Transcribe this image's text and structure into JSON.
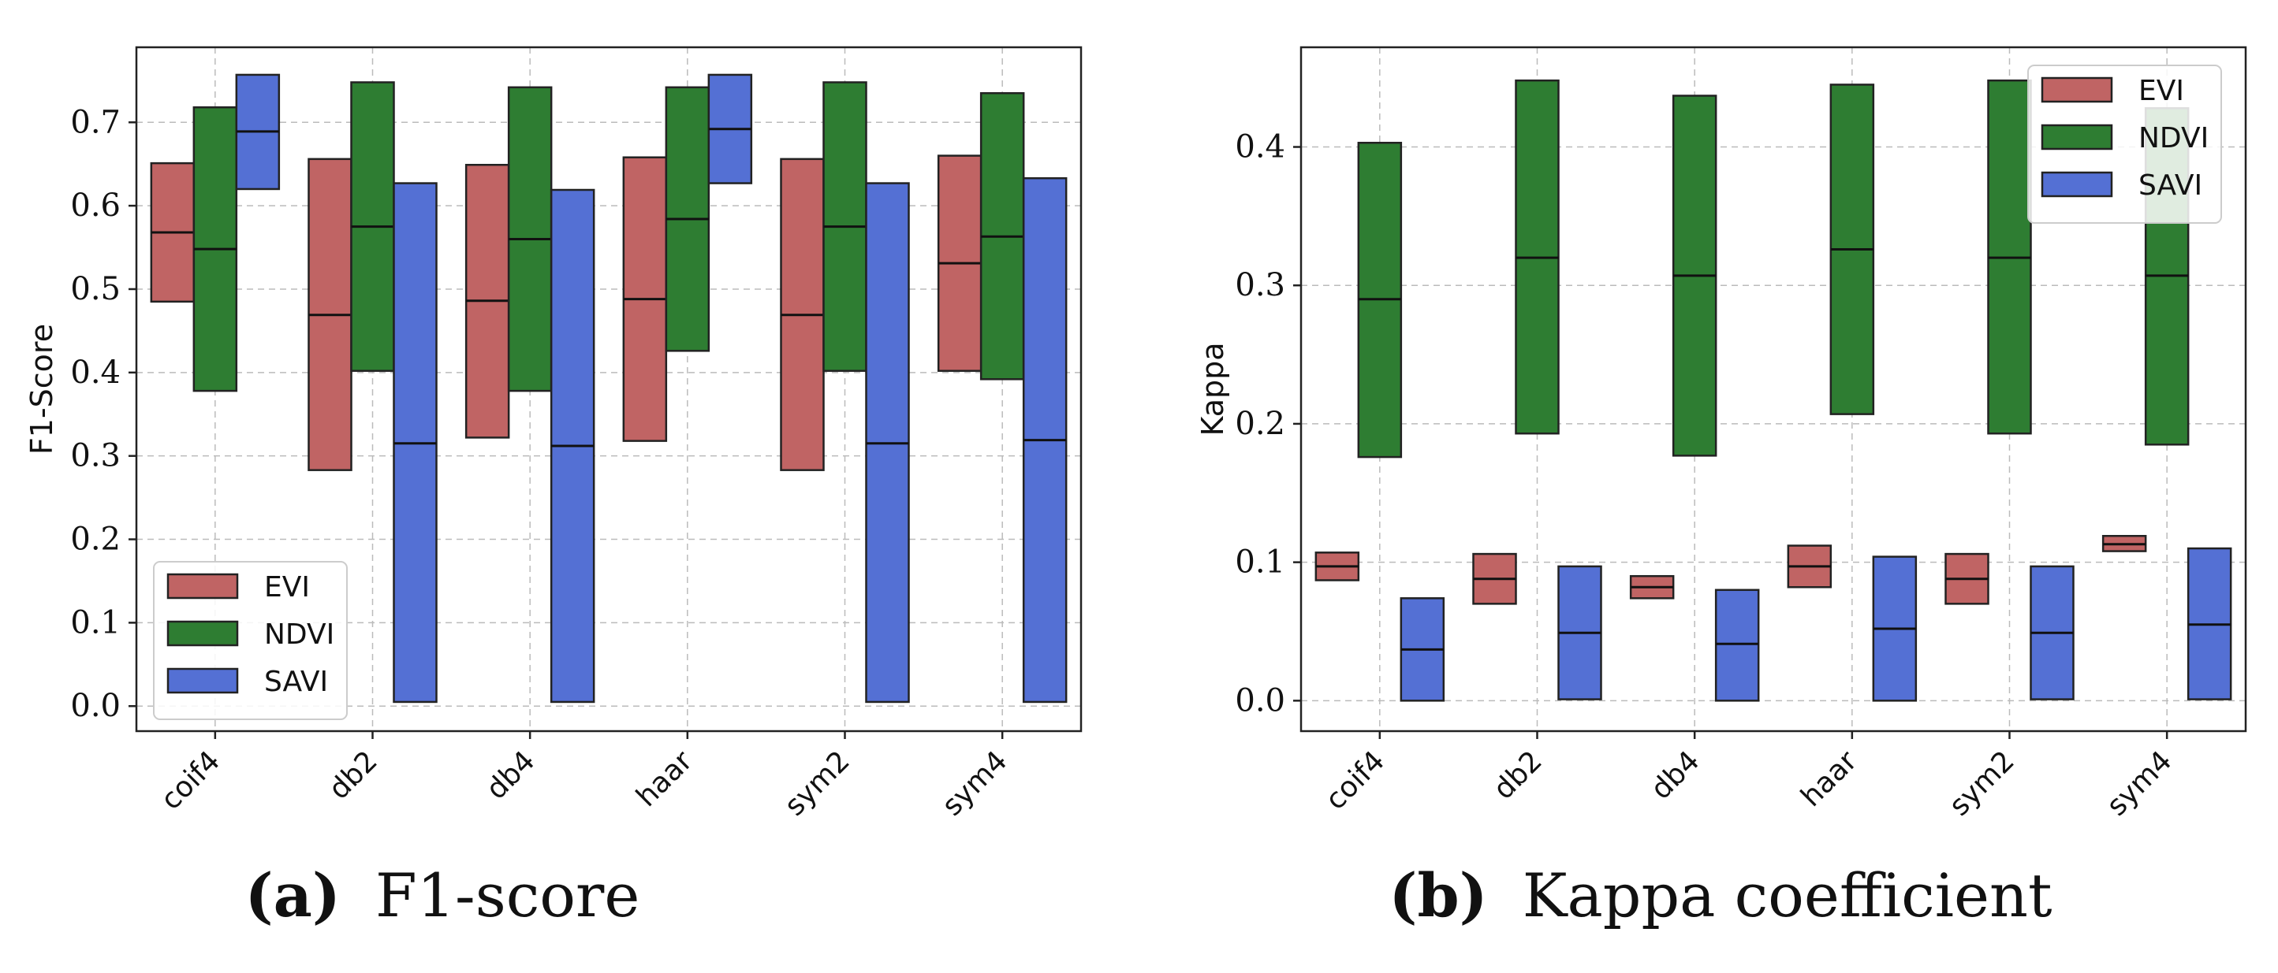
{
  "chart_data": [
    {
      "type": "bar",
      "bar_style": "floating range with median line",
      "caption_label": "(a)",
      "caption_title": "F1-score",
      "ylabel": "F1-Score",
      "xlabel": "",
      "categories": [
        "coif4",
        "db2",
        "db4",
        "haar",
        "sym2",
        "sym4"
      ],
      "ylim": [
        -0.03,
        0.79
      ],
      "yticks": [
        0.0,
        0.1,
        0.2,
        0.3,
        0.4,
        0.5,
        0.6,
        0.7
      ],
      "ytick_labels": [
        "0.0",
        "0.1",
        "0.2",
        "0.3",
        "0.4",
        "0.5",
        "0.6",
        "0.7"
      ],
      "grid": true,
      "legend_position": "lower-left",
      "series": [
        {
          "name": "EVI",
          "color": "#c06464",
          "low": [
            0.485,
            0.283,
            0.322,
            0.318,
            0.283,
            0.402
          ],
          "median": [
            0.568,
            0.469,
            0.486,
            0.488,
            0.469,
            0.531
          ],
          "high": [
            0.651,
            0.656,
            0.649,
            0.658,
            0.656,
            0.66
          ]
        },
        {
          "name": "NDVI",
          "color": "#2e7d32",
          "low": [
            0.378,
            0.402,
            0.378,
            0.426,
            0.402,
            0.392
          ],
          "median": [
            0.548,
            0.575,
            0.56,
            0.584,
            0.575,
            0.563
          ],
          "high": [
            0.718,
            0.748,
            0.742,
            0.742,
            0.748,
            0.735
          ]
        },
        {
          "name": "SAVI",
          "color": "#5470d4",
          "low": [
            0.62,
            0.005,
            0.005,
            0.627,
            0.005,
            0.005
          ],
          "median": [
            0.689,
            0.315,
            0.312,
            0.692,
            0.315,
            0.319
          ],
          "high": [
            0.757,
            0.627,
            0.619,
            0.757,
            0.627,
            0.633
          ]
        }
      ]
    },
    {
      "type": "bar",
      "bar_style": "floating range with median line",
      "caption_label": "(b)",
      "caption_title": "Kappa coefficient",
      "ylabel": "Kappa",
      "xlabel": "",
      "categories": [
        "coif4",
        "db2",
        "db4",
        "haar",
        "sym2",
        "sym4"
      ],
      "ylim": [
        -0.022,
        0.472
      ],
      "yticks": [
        0.0,
        0.1,
        0.2,
        0.3,
        0.4
      ],
      "ytick_labels": [
        "0.0",
        "0.1",
        "0.2",
        "0.3",
        "0.4"
      ],
      "grid": true,
      "legend_position": "top-right",
      "series": [
        {
          "name": "EVI",
          "color": "#c06464",
          "low": [
            0.087,
            0.07,
            0.074,
            0.082,
            0.07,
            0.108
          ],
          "median": [
            0.097,
            0.088,
            0.082,
            0.097,
            0.088,
            0.113
          ],
          "high": [
            0.107,
            0.106,
            0.09,
            0.112,
            0.106,
            0.119
          ]
        },
        {
          "name": "NDVI",
          "color": "#2e7d32",
          "low": [
            0.176,
            0.193,
            0.177,
            0.207,
            0.193,
            0.185
          ],
          "median": [
            0.29,
            0.32,
            0.307,
            0.326,
            0.32,
            0.307
          ],
          "high": [
            0.403,
            0.448,
            0.437,
            0.445,
            0.448,
            0.428
          ]
        },
        {
          "name": "SAVI",
          "color": "#5470d4",
          "low": [
            0.0,
            0.001,
            0.0,
            0.0,
            0.001,
            0.001
          ],
          "median": [
            0.037,
            0.049,
            0.041,
            0.052,
            0.049,
            0.055
          ],
          "high": [
            0.074,
            0.097,
            0.08,
            0.104,
            0.097,
            0.11
          ]
        }
      ]
    }
  ]
}
